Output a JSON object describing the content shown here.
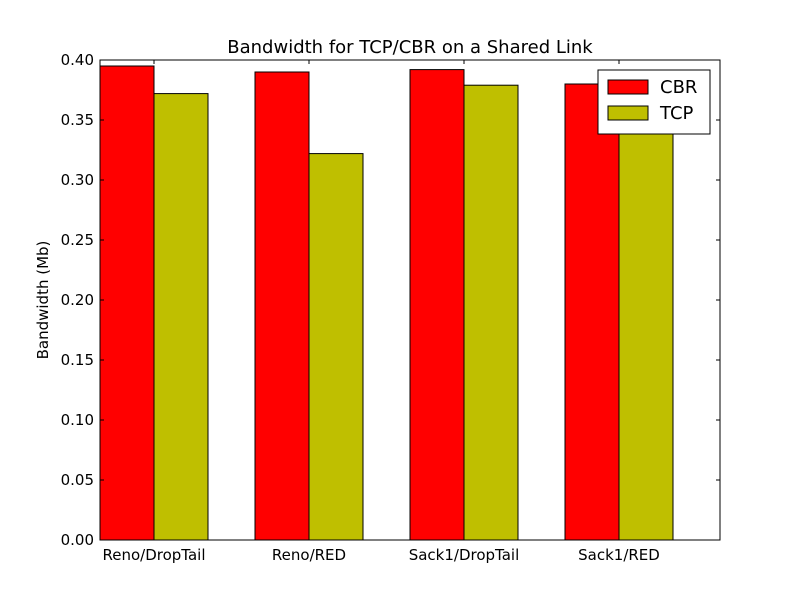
{
  "chart_data": {
    "type": "bar",
    "title": "Bandwidth for TCP/CBR on a Shared Link",
    "xlabel": "",
    "ylabel": "Bandwidth (Mb)",
    "categories": [
      "Reno/DropTail",
      "Reno/RED",
      "Sack1/DropTail",
      "Sack1/RED"
    ],
    "series": [
      {
        "name": "CBR",
        "color": "#ff0000",
        "values": [
          0.395,
          0.39,
          0.392,
          0.38
        ]
      },
      {
        "name": "TCP",
        "color": "#bfbf00",
        "values": [
          0.372,
          0.322,
          0.379,
          0.375
        ]
      }
    ],
    "ylim": [
      0,
      0.4
    ],
    "yticks": [
      "0.00",
      "0.05",
      "0.10",
      "0.15",
      "0.20",
      "0.25",
      "0.30",
      "0.35",
      "0.40"
    ],
    "grid": false,
    "legend": "top-right"
  }
}
